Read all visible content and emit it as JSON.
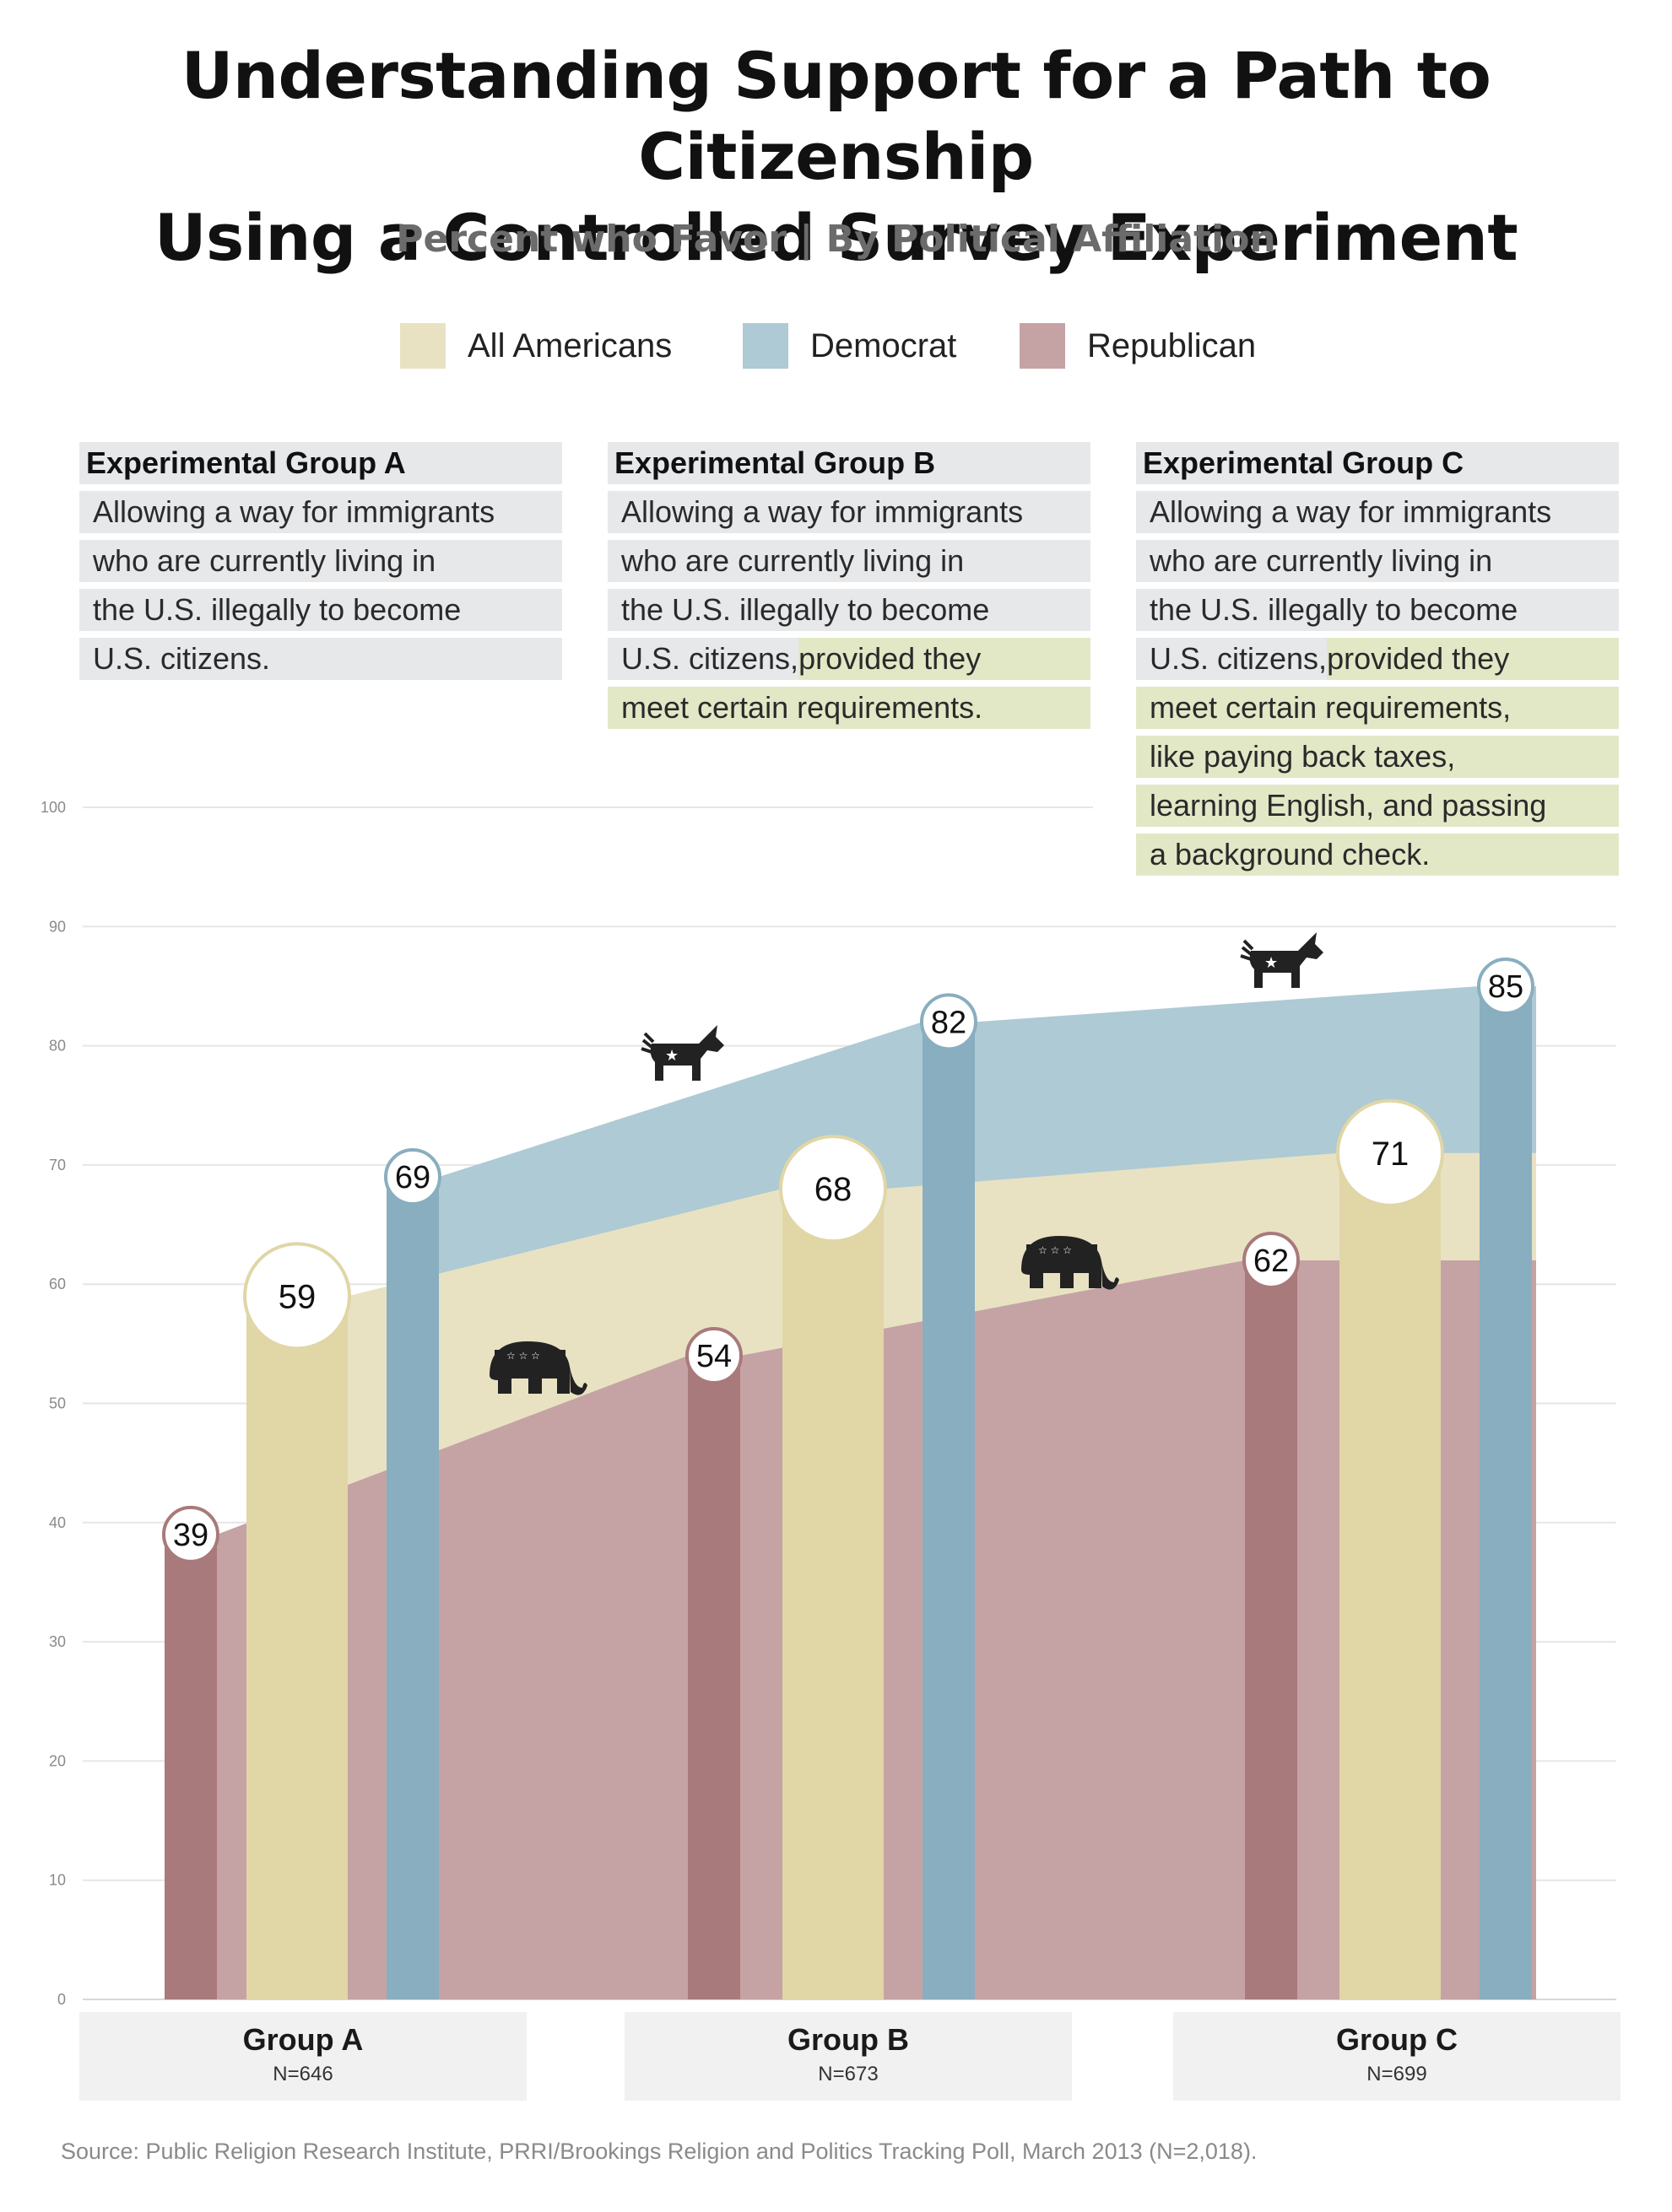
{
  "title_line1": "Understanding Support for a Path to Citizenship",
  "title_line2": "Using a Controlled Survey Experiment",
  "subtitle": "Percent who Favor | By Political Affiliation",
  "legend": [
    {
      "label": "All Americans",
      "color": "#e8e2c3"
    },
    {
      "label": "Democrat",
      "color": "#aecad4"
    },
    {
      "label": "Republican",
      "color": "#c5a3a4"
    }
  ],
  "conditions": [
    {
      "header": "Experimental Group A",
      "lines": [
        [
          {
            "text": "Allowing a way for immigrants",
            "hl": false
          }
        ],
        [
          {
            "text": "who are currently living in",
            "hl": false
          }
        ],
        [
          {
            "text": "the U.S. illegally to become",
            "hl": false
          }
        ],
        [
          {
            "text": "U.S. citizens.",
            "hl": false
          }
        ]
      ]
    },
    {
      "header": "Experimental Group B",
      "lines": [
        [
          {
            "text": "Allowing a way for immigrants",
            "hl": false
          }
        ],
        [
          {
            "text": "who are currently living in",
            "hl": false
          }
        ],
        [
          {
            "text": "the U.S. illegally to become",
            "hl": false
          }
        ],
        [
          {
            "text": "U.S. citizens,",
            "hl": false
          },
          {
            "text": " provided they",
            "hl": true
          }
        ],
        [
          {
            "text": "meet certain requirements.",
            "hl": true
          }
        ]
      ]
    },
    {
      "header": "Experimental Group C",
      "lines": [
        [
          {
            "text": "Allowing a way for immigrants",
            "hl": false
          }
        ],
        [
          {
            "text": "who are currently living in",
            "hl": false
          }
        ],
        [
          {
            "text": "the U.S. illegally to become",
            "hl": false
          }
        ],
        [
          {
            "text": "U.S. citizens,",
            "hl": false
          },
          {
            "text": " provided they",
            "hl": true
          }
        ],
        [
          {
            "text": "meet certain requirements,",
            "hl": true
          }
        ],
        [
          {
            "text": "like paying back taxes,",
            "hl": true
          }
        ],
        [
          {
            "text": "learning English, and passing",
            "hl": true
          }
        ],
        [
          {
            "text": "a background check.",
            "hl": true
          }
        ]
      ]
    }
  ],
  "groups": [
    {
      "label": "Group A",
      "n": "N=646"
    },
    {
      "label": "Group B",
      "n": "N=673"
    },
    {
      "label": "Group C",
      "n": "N=699"
    }
  ],
  "source": "Source: Public Religion Research Institute, PRRI/Brookings Religion and Politics Tracking Poll, March 2013  (N=2,018).",
  "icons": {
    "democrat": "donkey-icon",
    "republican": "elephant-icon"
  },
  "chart_data": {
    "type": "bar",
    "categories": [
      "Group A",
      "Group B",
      "Group C"
    ],
    "series": [
      {
        "name": "Republican",
        "values": [
          39,
          54,
          62
        ],
        "color": "#a97a7b"
      },
      {
        "name": "All Americans",
        "values": [
          59,
          68,
          71
        ],
        "color": "#e0d6a6"
      },
      {
        "name": "Democrat",
        "values": [
          69,
          82,
          85
        ],
        "color": "#89aebf"
      }
    ],
    "ylim": [
      0,
      100
    ],
    "yticks": [
      0,
      10,
      20,
      30,
      40,
      50,
      60,
      70,
      80,
      90,
      100
    ],
    "grid": true,
    "legend_position": "top",
    "title": "Understanding Support for a Path to Citizenship Using a Controlled Survey Experiment",
    "subtitle": "Percent who Favor | By Political Affiliation"
  }
}
